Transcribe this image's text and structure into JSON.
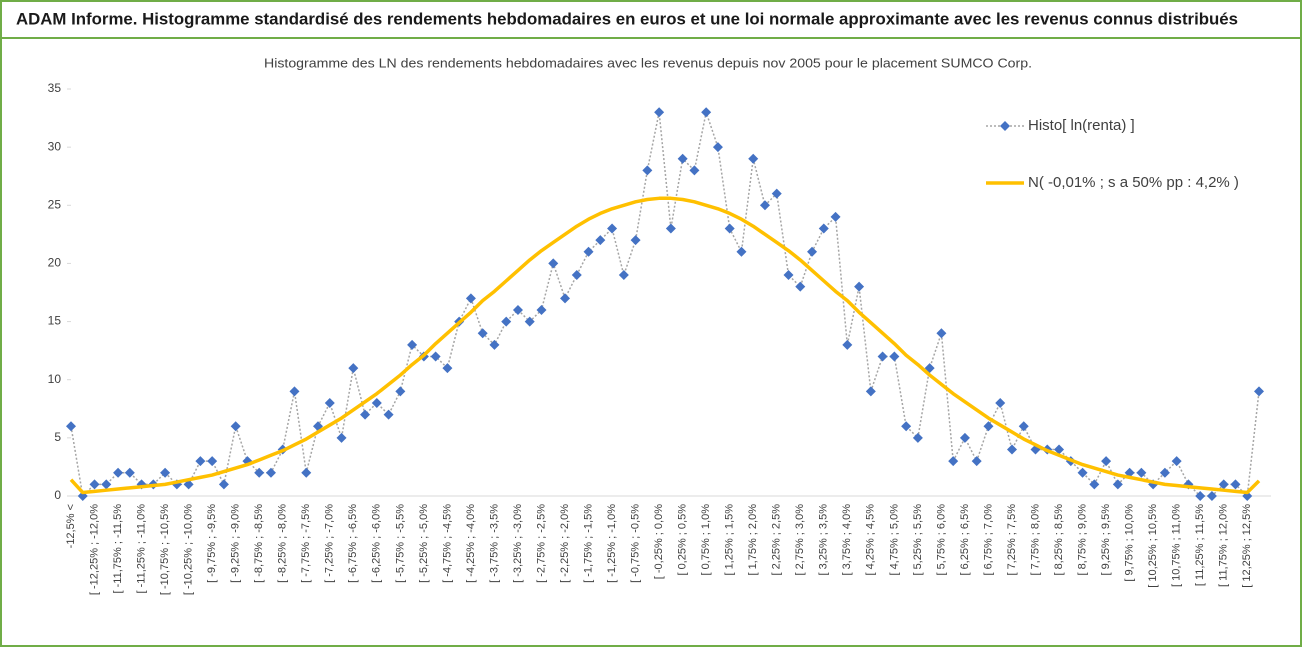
{
  "header": {
    "title": "ADAM Informe. Histogramme standardisé des rendements hebdomadaires en euros et une loi normale approximante avec les revenus connus distribués"
  },
  "chart_data": {
    "type": "line",
    "title": "Histogramme des LN des rendements hebdomadaires avec les revenus depuis nov 2005 pour le placement SUMCO Corp.",
    "categories": [
      "-12,5% <",
      null,
      "[ -12,25% ; -12,0%",
      null,
      "[ -11,75% ; -11,5%",
      null,
      "[ -11,25% ; -11,0%",
      null,
      "[ -10,75% ; -10,5%",
      null,
      "[ -10,25% ; -10,0%",
      null,
      "[ -9,75% ; -9,5%",
      null,
      "[ -9,25% ; -9,0%",
      null,
      "[ -8,75% ; -8,5%",
      null,
      "[ -8,25% ; -8,0%",
      null,
      "[ -7,75% ; -7,5%",
      null,
      "[ -7,25% ; -7,0%",
      null,
      "[ -6,75% ; -6,5%",
      null,
      "[ -6,25% ; -6,0%",
      null,
      "[ -5,75% ; -5,5%",
      null,
      "[ -5,25% ; -5,0%",
      null,
      "[ -4,75% ; -4,5%",
      null,
      "[ -4,25% ; -4,0%",
      null,
      "[ -3,75% ; -3,5%",
      null,
      "[ -3,25% ; -3,0%",
      null,
      "[ -2,75% ; -2,5%",
      null,
      "[ -2,25% ; -2,0%",
      null,
      "[ -1,75% ; -1,5%",
      null,
      "[ -1,25% ; -1,0%",
      null,
      "[ -0,75% ; -0,5%",
      null,
      "[ -0,25% ; 0,0%",
      null,
      "[ 0,25% ; 0,5%",
      null,
      "[ 0,75% ; 1,0%",
      null,
      "[ 1,25% ; 1,5%",
      null,
      "[ 1,75% ; 2,0%",
      null,
      "[ 2,25% ; 2,5%",
      null,
      "[ 2,75% ; 3,0%",
      null,
      "[ 3,25% ; 3,5%",
      null,
      "[ 3,75% ; 4,0%",
      null,
      "[ 4,25% ; 4,5%",
      null,
      "[ 4,75% ; 5,0%",
      null,
      "[ 5,25% ; 5,5%",
      null,
      "[ 5,75% ; 6,0%",
      null,
      "[ 6,25% ; 6,5%",
      null,
      "[ 6,75% ; 7,0%",
      null,
      "[ 7,25% ; 7,5%",
      null,
      "[ 7,75% ; 8,0%",
      null,
      "[ 8,25% ; 8,5%",
      null,
      "[ 8,75% ; 9,0%",
      null,
      "[ 9,25% ; 9,5%",
      null,
      "[ 9,75% ; 10,0%",
      null,
      "[ 10,25% ; 10,5%",
      null,
      "[ 10,75% ; 11,0%",
      null,
      "[ 11,25% ; 11,5%",
      null,
      "[ 11,75% ; 12,0%",
      null,
      "[ 12,25% ; 12,5%",
      null
    ],
    "series": [
      {
        "name": "Histo[ ln(renta) ]",
        "color": "#4472c4",
        "line_color": "#a5a5a5",
        "marker": "diamond",
        "line_style": "dotted",
        "values": [
          6,
          0,
          1,
          1,
          2,
          2,
          1,
          1,
          2,
          1,
          1,
          3,
          3,
          1,
          6,
          3,
          2,
          2,
          4,
          9,
          2,
          6,
          8,
          5,
          11,
          7,
          8,
          7,
          9,
          13,
          12,
          12,
          11,
          15,
          17,
          14,
          13,
          15,
          16,
          15,
          16,
          20,
          17,
          19,
          21,
          22,
          23,
          19,
          22,
          28,
          33,
          23,
          29,
          28,
          33,
          30,
          23,
          21,
          29,
          25,
          26,
          19,
          18,
          21,
          23,
          24,
          13,
          18,
          9,
          12,
          12,
          6,
          5,
          11,
          14,
          3,
          5,
          3,
          6,
          8,
          4,
          6,
          4,
          4,
          4,
          3,
          2,
          1,
          3,
          1,
          2,
          2,
          1,
          2,
          3,
          1,
          0,
          0,
          1,
          1,
          0,
          9
        ]
      },
      {
        "name": "N( -0,01% ; s a 50% pp : 4,2% )",
        "color": "#ffc000",
        "marker": "none",
        "line_style": "solid",
        "values": [
          1.4,
          0.3,
          0.4,
          0.5,
          0.6,
          0.7,
          0.8,
          0.9,
          1.0,
          1.2,
          1.4,
          1.6,
          1.8,
          2.1,
          2.4,
          2.7,
          3.1,
          3.5,
          3.9,
          4.4,
          4.9,
          5.5,
          6.1,
          6.7,
          7.4,
          8.1,
          8.8,
          9.6,
          10.4,
          11.3,
          12.1,
          13.1,
          14.0,
          14.9,
          15.8,
          16.8,
          17.6,
          18.5,
          19.4,
          20.3,
          21.1,
          21.8,
          22.5,
          23.2,
          23.8,
          24.3,
          24.7,
          25.0,
          25.3,
          25.5,
          25.6,
          25.6,
          25.5,
          25.3,
          25.0,
          24.7,
          24.3,
          23.8,
          23.2,
          22.5,
          21.8,
          21.1,
          20.3,
          19.4,
          18.5,
          17.6,
          16.8,
          15.8,
          14.9,
          14.0,
          13.1,
          12.1,
          11.3,
          10.4,
          9.6,
          8.8,
          8.1,
          7.4,
          6.7,
          6.1,
          5.5,
          4.9,
          4.4,
          3.9,
          3.5,
          3.1,
          2.7,
          2.4,
          2.1,
          1.8,
          1.6,
          1.4,
          1.2,
          1.0,
          0.9,
          0.8,
          0.7,
          0.6,
          0.5,
          0.4,
          0.3,
          1.3
        ]
      }
    ],
    "ylim": [
      0,
      35
    ],
    "yticks": [
      0,
      5,
      10,
      15,
      20,
      25,
      30,
      35
    ],
    "legend": "top-right"
  }
}
